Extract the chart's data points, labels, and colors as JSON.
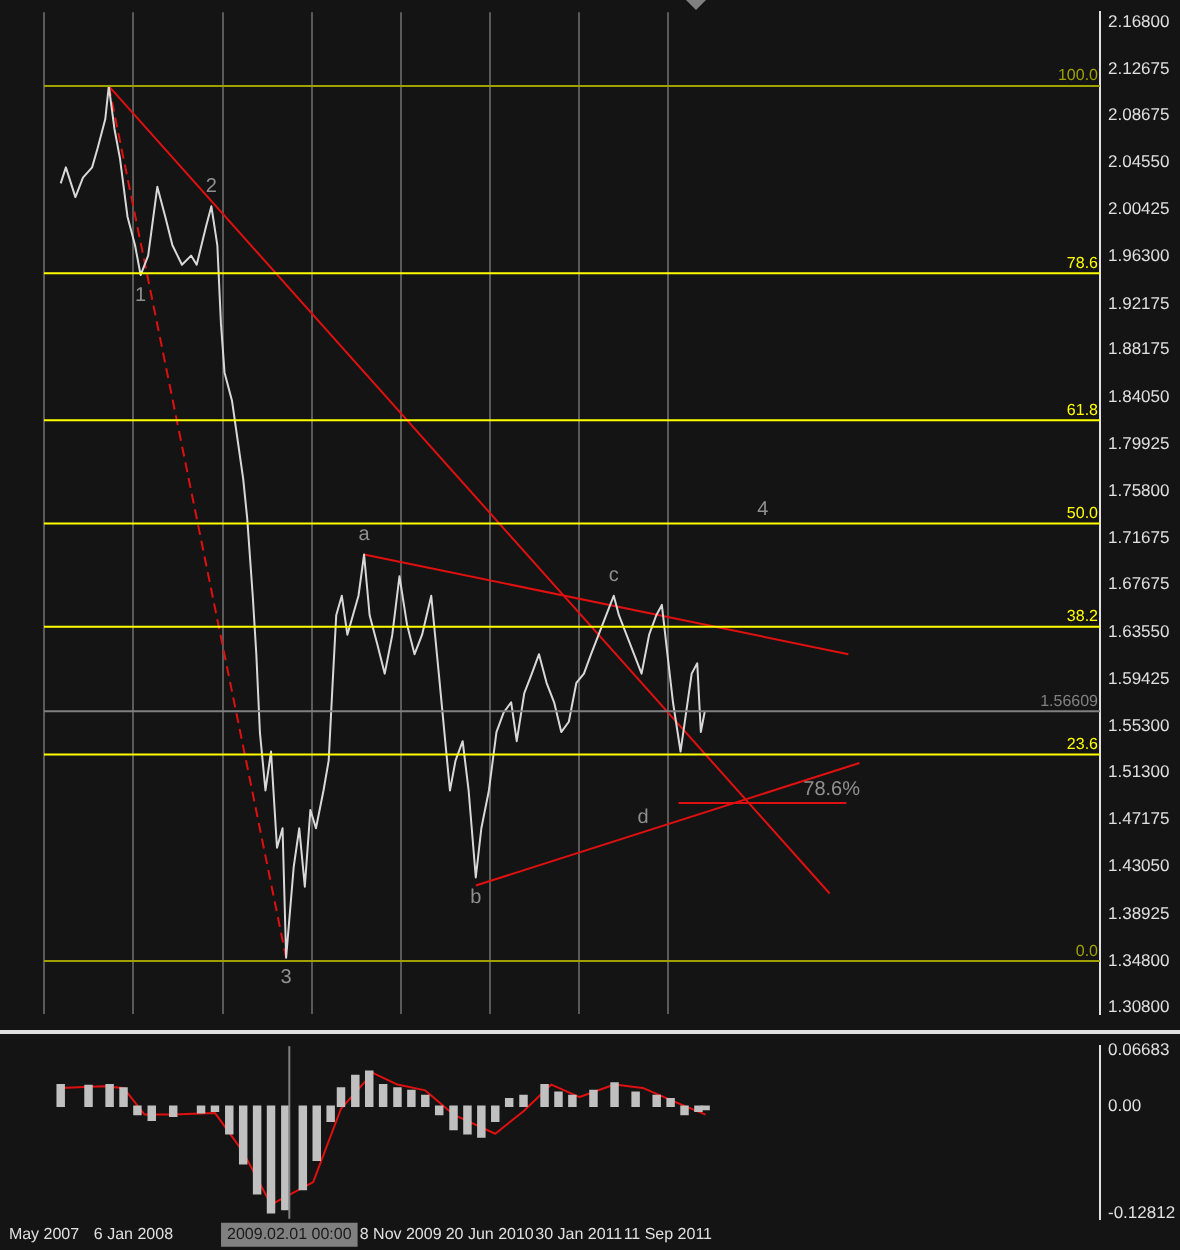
{
  "chart_data": [
    {
      "type": "line",
      "tick_labels": "y",
      "grid": "x",
      "legend": false,
      "xlim": [
        "2007-05-26",
        "2014-09-02"
      ],
      "ylim": [
        1.302,
        2.1765
      ],
      "y2lim": [
        -6.02,
        108.44
      ],
      "xticks": [
        {
          "value": "2007-05-26",
          "label": null
        },
        {
          "value": "2008-01-06",
          "label": null
        },
        {
          "value": "2008-08-17",
          "label": null
        },
        {
          "value": "2009-03-29",
          "label": null
        },
        {
          "value": "2009-11-08",
          "label": null
        },
        {
          "value": "2010-06-20",
          "label": null
        },
        {
          "value": "2011-01-30",
          "label": null
        },
        {
          "value": "2011-09-11",
          "label": null
        }
      ],
      "yticks": [
        {
          "value": 2.168,
          "label": "2.16800"
        },
        {
          "value": 2.12675,
          "label": "2.12675"
        },
        {
          "value": 2.08675,
          "label": "2.08675"
        },
        {
          "value": 2.0455,
          "label": "2.04550"
        },
        {
          "value": 2.00425,
          "label": "2.00425"
        },
        {
          "value": 1.963,
          "label": "1.96300"
        },
        {
          "value": 1.92175,
          "label": "1.92175"
        },
        {
          "value": 1.88175,
          "label": "1.88175"
        },
        {
          "value": 1.8405,
          "label": "1.84050"
        },
        {
          "value": 1.79925,
          "label": "1.79925"
        },
        {
          "value": 1.758,
          "label": "1.75800"
        },
        {
          "value": 1.71675,
          "label": "1.71675"
        },
        {
          "value": 1.67675,
          "label": "1.67675"
        },
        {
          "value": 1.6355,
          "label": "1.63550"
        },
        {
          "value": 1.59425,
          "label": "1.59425"
        },
        {
          "value": 1.553,
          "label": "1.55300"
        },
        {
          "value": 1.513,
          "label": "1.51300"
        },
        {
          "value": 1.47175,
          "label": "1.47175"
        },
        {
          "value": 1.4305,
          "label": "1.43050"
        },
        {
          "value": 1.38925,
          "label": "1.38925"
        },
        {
          "value": 1.348,
          "label": "1.34800"
        },
        {
          "value": 1.308,
          "label": "1.30800"
        }
      ],
      "series": [
        {
          "color": "#d8d8d8",
          "x": [
            "2007-07-07",
            "2007-07-20",
            "2007-08-13",
            "2007-09-01",
            "2007-09-24",
            "2007-10-08",
            "2007-10-27",
            "2007-11-05",
            "2007-11-19",
            "2007-12-03",
            "2007-12-22",
            "2008-01-10",
            "2008-01-24",
            "2008-02-12",
            "2008-03-06",
            "2008-03-26",
            "2008-04-13",
            "2008-05-07",
            "2008-05-30",
            "2008-06-13",
            "2008-07-07",
            "2008-07-20",
            "2008-08-04",
            "2008-08-13",
            "2008-08-22",
            "2008-09-10",
            "2008-09-24",
            "2008-10-08",
            "2008-10-18",
            "2008-11-01",
            "2008-11-10",
            "2008-11-19",
            "2008-12-03",
            "2008-12-17",
            "2009-01-01",
            "2009-01-15",
            "2009-01-24",
            "2009-02-12",
            "2009-02-26",
            "2009-03-12",
            "2009-03-26",
            "2009-04-09",
            "2009-04-28",
            "2009-05-11",
            "2009-05-21",
            "2009-05-30",
            "2009-06-13",
            "2009-06-27",
            "2009-07-11",
            "2009-07-25",
            "2009-08-08",
            "2009-08-22",
            "2009-09-10",
            "2009-09-29",
            "2009-10-18",
            "2009-11-05",
            "2009-11-24",
            "2009-12-13",
            "2010-01-01",
            "2010-01-24",
            "2010-02-12",
            "2010-02-26",
            "2010-03-12",
            "2010-03-26",
            "2010-04-13",
            "2010-04-28",
            "2010-05-16",
            "2010-05-30",
            "2010-06-18",
            "2010-07-07",
            "2010-07-25",
            "2010-08-13",
            "2010-08-27",
            "2010-09-15",
            "2010-10-04",
            "2010-10-22",
            "2010-11-10",
            "2010-11-29",
            "2010-12-17",
            "2011-01-05",
            "2011-01-24",
            "2011-02-12",
            "2011-03-02",
            "2011-03-21",
            "2011-04-09",
            "2011-04-28",
            "2011-05-11",
            "2011-05-30",
            "2011-06-18",
            "2011-07-07",
            "2011-07-26",
            "2011-08-13",
            "2011-08-27",
            "2011-09-10",
            "2011-09-24",
            "2011-10-13",
            "2011-10-27",
            "2011-11-10",
            "2011-11-24",
            "2011-12-03",
            "2011-12-13"
          ],
          "values": [
            2.027,
            2.041,
            2.015,
            2.032,
            2.041,
            2.058,
            2.083,
            2.112,
            2.075,
            2.049,
            1.998,
            1.973,
            1.947,
            1.964,
            2.024,
            1.998,
            1.973,
            1.956,
            1.964,
            1.956,
            1.99,
            2.007,
            1.973,
            1.905,
            1.862,
            1.837,
            1.803,
            1.769,
            1.735,
            1.667,
            1.616,
            1.548,
            1.497,
            1.531,
            1.447,
            1.464,
            1.351,
            1.43,
            1.464,
            1.413,
            1.48,
            1.464,
            1.497,
            1.523,
            1.591,
            1.65,
            1.667,
            1.633,
            1.65,
            1.667,
            1.703,
            1.65,
            1.625,
            1.599,
            1.633,
            1.684,
            1.642,
            1.616,
            1.633,
            1.667,
            1.599,
            1.548,
            1.497,
            1.523,
            1.54,
            1.497,
            1.421,
            1.464,
            1.497,
            1.548,
            1.565,
            1.574,
            1.54,
            1.582,
            1.599,
            1.616,
            1.591,
            1.574,
            1.548,
            1.557,
            1.591,
            1.599,
            1.616,
            1.633,
            1.65,
            1.667,
            1.65,
            1.633,
            1.616,
            1.599,
            1.633,
            1.65,
            1.659,
            1.616,
            1.574,
            1.531,
            1.565,
            1.599,
            1.608,
            1.548,
            1.566
          ]
        },
        {
          "type": "line",
          "color": "#e01010",
          "x": [
            "2007-11-05",
            "2012-10-22"
          ],
          "values": [
            2.112,
            1.407
          ]
        },
        {
          "type": "line",
          "color": "#e01010",
          "line_style": "dashed",
          "x": [
            "2007-11-05",
            "2009-01-24"
          ],
          "values": [
            2.112,
            1.351
          ]
        },
        {
          "type": "line",
          "color": "#e01010",
          "x": [
            "2009-08-08",
            "2012-12-08"
          ],
          "values": [
            1.703,
            1.616
          ]
        },
        {
          "type": "line",
          "color": "#e01010",
          "x": [
            "2010-05-16",
            "2013-01-05"
          ],
          "values": [
            1.414,
            1.521
          ]
        },
        {
          "type": "line",
          "color": "#e01010",
          "x": [
            "2011-10-08",
            "2012-12-03"
          ],
          "values": [
            1.486,
            1.486
          ]
        }
      ],
      "ref_lines": [
        {
          "axis": "y2",
          "value": 100.0,
          "label": "100.0",
          "color": "#a0a000"
        },
        {
          "axis": "y2",
          "value": 78.6,
          "label": "78.6",
          "color": "#ffff00"
        },
        {
          "axis": "y2",
          "value": 61.8,
          "label": "61.8",
          "color": "#ffff00"
        },
        {
          "axis": "y2",
          "value": 50.0,
          "label": "50.0",
          "color": "#ffff00"
        },
        {
          "axis": "y2",
          "value": 38.2,
          "label": "38.2",
          "color": "#ffff00"
        },
        {
          "axis": "y2",
          "value": 23.6,
          "label": "23.6",
          "color": "#ffff00"
        },
        {
          "axis": "y2",
          "value": 0.0,
          "label": "0.0",
          "color": "#a0a000"
        },
        {
          "axis": "y",
          "value": 1.56609,
          "label": "1.56609",
          "color": "#808080"
        }
      ],
      "annotations": [
        {
          "text": "1",
          "x": "2008-01-24",
          "y": 1.947
        },
        {
          "text": "2",
          "x": "2008-07-20",
          "y": 2.007
        },
        {
          "text": "3",
          "x": "2009-01-24",
          "y": 1.351
        },
        {
          "text": "a",
          "x": "2009-08-08",
          "y": 1.703
        },
        {
          "text": "b",
          "x": "2010-05-16",
          "y": 1.421
        },
        {
          "text": "c",
          "x": "2011-04-28",
          "y": 1.667
        },
        {
          "text": "4",
          "x": "2012-05-07",
          "y": 1.73
        },
        {
          "text": "d",
          "x": "2011-07-11",
          "y": 1.461
        },
        {
          "text": "78.6%",
          "x": "2012-10-27",
          "y": 1.486
        }
      ]
    },
    {
      "type": "bar",
      "grid": false,
      "legend": false,
      "xlim": [
        "2007-05-26",
        "2014-09-02"
      ],
      "ylim": [
        -0.135,
        0.072
      ],
      "xticks": [
        {
          "value": "2007-05-26",
          "label": "May 2007"
        },
        {
          "value": "2008-01-06",
          "label": "6 Jan 2008"
        },
        {
          "value": "2009-11-08",
          "label": "8 Nov 2009"
        },
        {
          "value": "2010-06-20",
          "label": "20 Jun 2010"
        },
        {
          "value": "2011-01-30",
          "label": "30 Jan 2011"
        },
        {
          "value": "2011-09-11",
          "label": "11 Sep 2011"
        }
      ],
      "yticks": [
        {
          "value": 0.06683,
          "label": "0.06683"
        },
        {
          "value": 0,
          "label": "0.00"
        },
        {
          "value": -0.12812,
          "label": "-0.12812"
        }
      ],
      "series": [
        {
          "color": "#c0c0c0",
          "x": [
            "2007-07-07",
            "2007-09-15",
            "2007-11-07",
            "2007-12-12",
            "2008-01-16",
            "2008-02-21",
            "2008-04-15",
            "2008-06-24",
            "2008-07-29",
            "2008-09-03",
            "2008-10-08",
            "2008-11-12",
            "2008-12-17",
            "2009-01-22",
            "2009-03-07",
            "2009-04-11",
            "2009-05-16",
            "2009-06-11",
            "2009-07-17",
            "2009-08-21",
            "2009-09-25",
            "2009-10-31",
            "2009-12-05",
            "2010-01-09",
            "2010-02-13",
            "2010-03-21",
            "2010-04-25",
            "2010-05-30",
            "2010-07-04",
            "2010-08-08",
            "2010-09-13",
            "2010-11-05",
            "2010-12-10",
            "2011-01-14",
            "2011-03-08",
            "2011-04-30",
            "2011-06-22",
            "2011-08-14",
            "2011-09-18",
            "2011-10-23",
            "2011-11-27",
            "2011-12-15"
          ],
          "values": [
            0.026,
            0.025,
            0.026,
            0.022,
            -0.01,
            -0.017,
            -0.012,
            -0.008,
            -0.006,
            -0.033,
            -0.069,
            -0.105,
            -0.128,
            -0.124,
            -0.1,
            -0.065,
            -0.018,
            0.022,
            0.037,
            0.042,
            0.026,
            0.022,
            0.019,
            0.013,
            -0.01,
            -0.028,
            -0.033,
            -0.037,
            -0.018,
            0.009,
            0.013,
            0.026,
            0.017,
            0.013,
            0.019,
            0.028,
            0.017,
            0.013,
            0.009,
            -0.01,
            -0.006,
            -0.004
          ]
        },
        {
          "type": "line",
          "color": "#e01010",
          "x": [
            "2007-07-07",
            "2007-10-20",
            "2007-12-12",
            "2008-02-03",
            "2008-04-15",
            "2008-07-29",
            "2008-10-08",
            "2008-12-17",
            "2009-04-02",
            "2009-06-11",
            "2009-08-30",
            "2009-10-31",
            "2010-01-09",
            "2010-03-21",
            "2010-07-04",
            "2010-09-13",
            "2010-11-22",
            "2011-02-01",
            "2011-04-30",
            "2011-07-10",
            "2011-10-05",
            "2011-12-15"
          ],
          "values": [
            0.022,
            0.024,
            0.022,
            -0.01,
            -0.01,
            -0.008,
            -0.055,
            -0.118,
            -0.091,
            -0.003,
            0.04,
            0.026,
            0.019,
            -0.01,
            -0.033,
            -0.006,
            0.026,
            0.011,
            0.026,
            0.022,
            0.004,
            -0.01
          ]
        }
      ],
      "ref_lines": [
        {
          "axis": "x",
          "value": "2009-02-01",
          "label": "2009.02.01 00:00",
          "color": "#808080"
        }
      ]
    }
  ]
}
